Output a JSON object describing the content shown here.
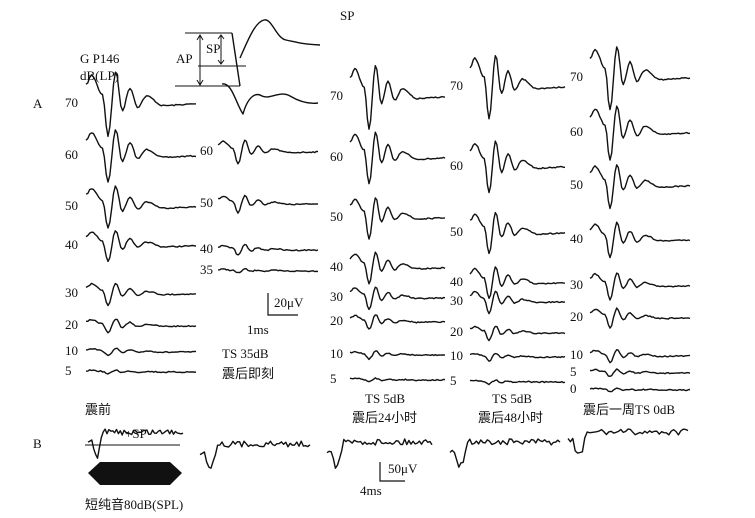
{
  "panel_labels": [
    "A",
    "B"
  ],
  "title": "SP",
  "inset": {
    "ap": "AP",
    "sp": "SP"
  },
  "columns": [
    {
      "header": [
        "G P146",
        "dB(LP)"
      ],
      "levels": [
        "70",
        "60",
        "50",
        "40",
        "30",
        "20",
        "10",
        "5"
      ],
      "caption": [
        "震前"
      ]
    },
    {
      "levels": [
        "60",
        "50",
        "40",
        "35"
      ],
      "caption": [
        "TS 35dB",
        "震后即刻"
      ]
    },
    {
      "levels": [
        "70",
        "60",
        "50",
        "40",
        "30",
        "20",
        "10",
        "5"
      ],
      "caption": [
        "TS 5dB",
        "震后24小时"
      ]
    },
    {
      "levels": [
        "70",
        "60",
        "50",
        "40",
        "30",
        "20",
        "10",
        "5"
      ],
      "caption": [
        "TS 5dB",
        "震后48小时"
      ]
    },
    {
      "levels": [
        "70",
        "60",
        "50",
        "40",
        "30",
        "20",
        "10",
        "5",
        "0"
      ],
      "caption": [
        "震后一周TS 0dB"
      ]
    }
  ],
  "scale_a": {
    "amplitude": "20μV",
    "time": "1ms"
  },
  "panel_b": {
    "sp_label": "+SP",
    "stimulus": "短纯音80dB(SPL)",
    "amplitude": "50μV",
    "time": "4ms"
  }
}
